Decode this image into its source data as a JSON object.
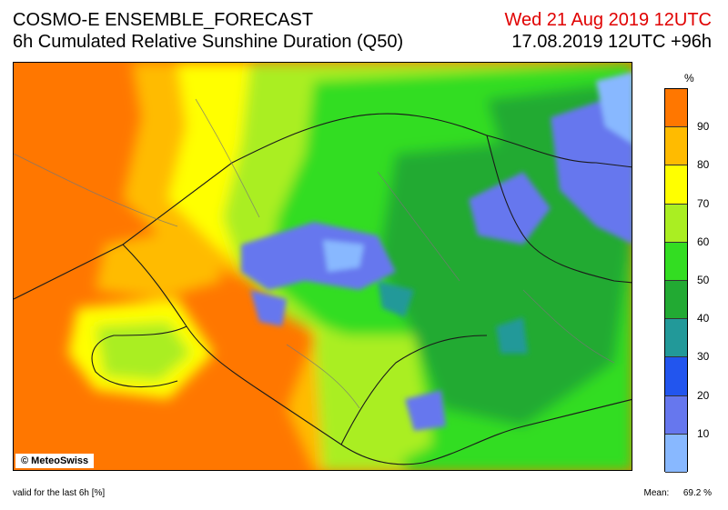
{
  "header": {
    "line1": "COSMO-E ENSEMBLE_FORECAST",
    "line2": "6h Cumulated Relative Sunshine Duration (Q50)",
    "valid_time": "Wed 21 Aug 2019 12UTC",
    "run_info": "17.08.2019 12UTC +96h"
  },
  "colorbar": {
    "unit": "%",
    "ticks": [
      "10",
      "20",
      "30",
      "40",
      "50",
      "60",
      "70",
      "80",
      "90"
    ],
    "colors": [
      "#88b8ff",
      "#6677ee",
      "#2255ee",
      "#229999",
      "#22aa33",
      "#33dd22",
      "#aaee22",
      "#ffff00",
      "#ffbb00",
      "#ff7700"
    ]
  },
  "map": {
    "copyright": "© MeteoSwiss"
  },
  "footer": {
    "valid_note": "valid for the last 6h [%]",
    "mean_label": "Mean:",
    "mean_value": "69.2 %"
  }
}
